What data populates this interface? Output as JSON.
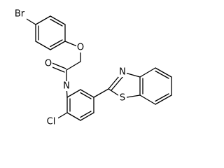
{
  "atoms": {
    "bromine": "Br",
    "ether_oxygen": "O",
    "carbonyl_oxygen": "O",
    "amide_nitrogen": "N",
    "chlorine": "Cl",
    "thiazole_nitrogen": "N",
    "sulfur": "S"
  }
}
